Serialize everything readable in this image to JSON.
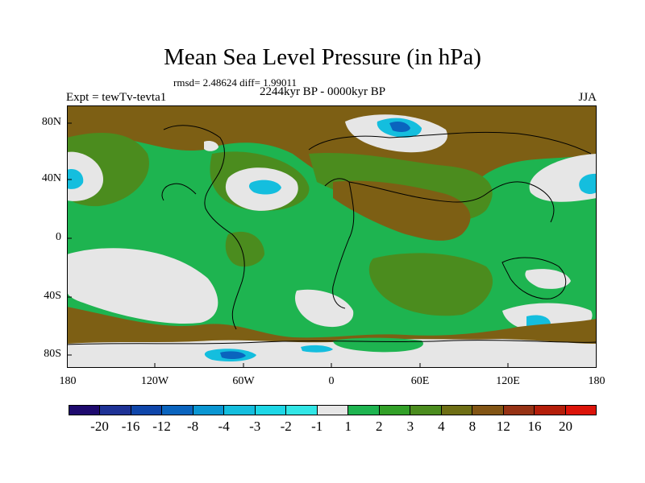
{
  "title": "Mean Sea Level Pressure (in hPa)",
  "stats": "rmsd= 2.48624 diff= 1.99011",
  "period": "2244kyr BP - 0000kyr BP",
  "expt": "Expt = tewTv-tevta1",
  "season": "JJA",
  "lat_labels": [
    "80N",
    "40N",
    "0",
    "40S",
    "80S"
  ],
  "lon_labels": [
    "180",
    "120W",
    "60W",
    "0",
    "60E",
    "120E",
    "180"
  ],
  "colorbar": {
    "colors": [
      "#1e0a6e",
      "#1e3296",
      "#0f46aa",
      "#0a64be",
      "#0a96d2",
      "#14bede",
      "#1ed7e6",
      "#32e6e6",
      "#e6e6e6",
      "#1eb450",
      "#32a028",
      "#4b8c1e",
      "#6e6e14",
      "#825514",
      "#963214",
      "#b41e0a",
      "#dc140a"
    ],
    "labels": [
      "-20",
      "-16",
      "-12",
      "-8",
      "-4",
      "-3",
      "-2",
      "-1",
      "1",
      "2",
      "3",
      "4",
      "8",
      "12",
      "16",
      "20"
    ]
  },
  "map_colors": {
    "brown": "#7d5f14",
    "olive": "#4b8c1e",
    "green": "#1eb450",
    "white": "#e6e6e6",
    "cyan": "#14bede",
    "blue": "#0a64be"
  }
}
